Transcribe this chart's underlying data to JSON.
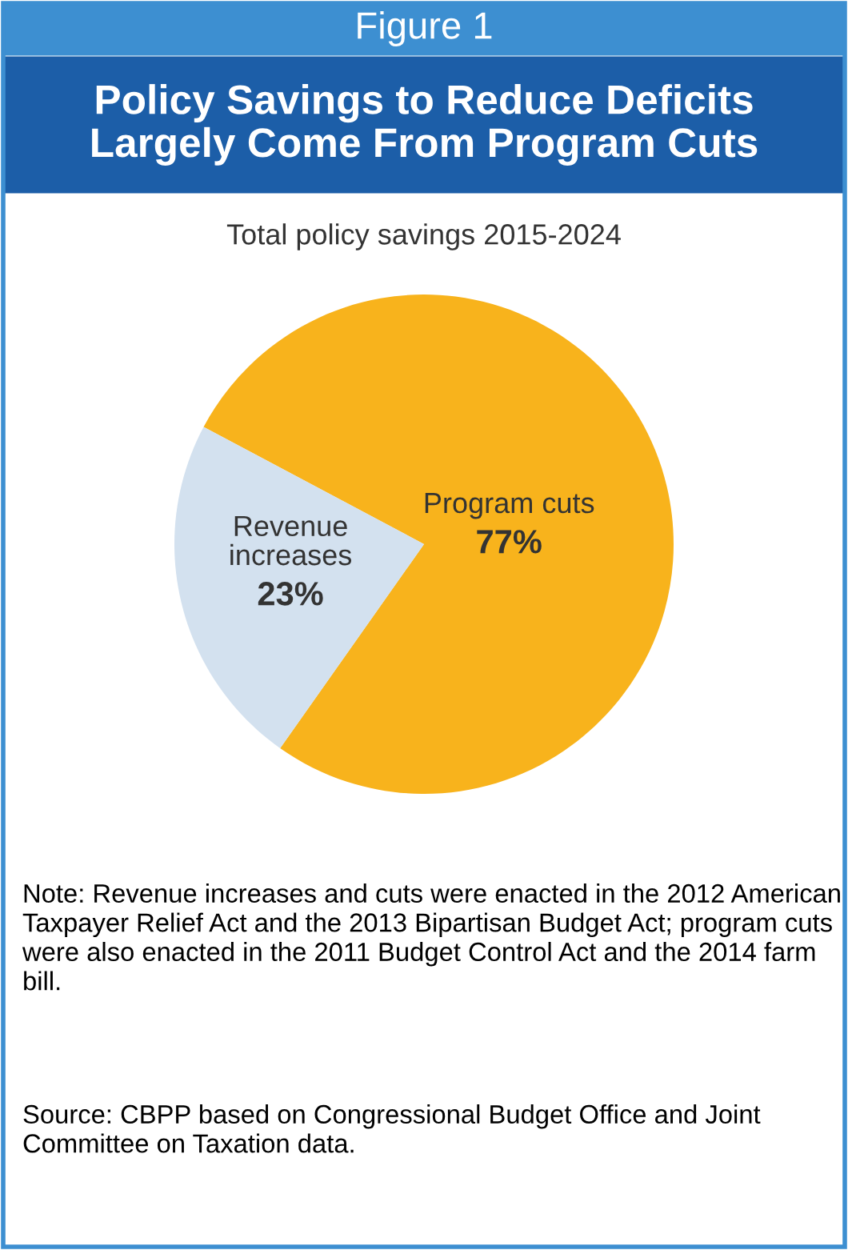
{
  "chart_data": {
    "type": "pie",
    "title": "Figure 1",
    "subtitle": "Policy Savings to Reduce Deficits\nLargely Come From Program Cuts",
    "categories": [
      "Program cuts",
      "Revenue\nincreases"
    ],
    "values": [
      77,
      23
    ],
    "value_labels": [
      "77%",
      "23%"
    ],
    "colors": [
      "#f8b31c",
      "#d3e1ef"
    ],
    "legend": false,
    "annotations": [
      "Total policy savings 2015-2024",
      "Note: Revenue increases and cuts were enacted in the 2012 American Taxpayer Relief Act and the 2013 Bipartisan Budget Act; program cuts were also enacted in the 2011 Budget Control Act and the 2014 farm bill.",
      "Source: CBPP based on Congressional Budget Office and Joint Committee on Taxation data."
    ]
  }
}
